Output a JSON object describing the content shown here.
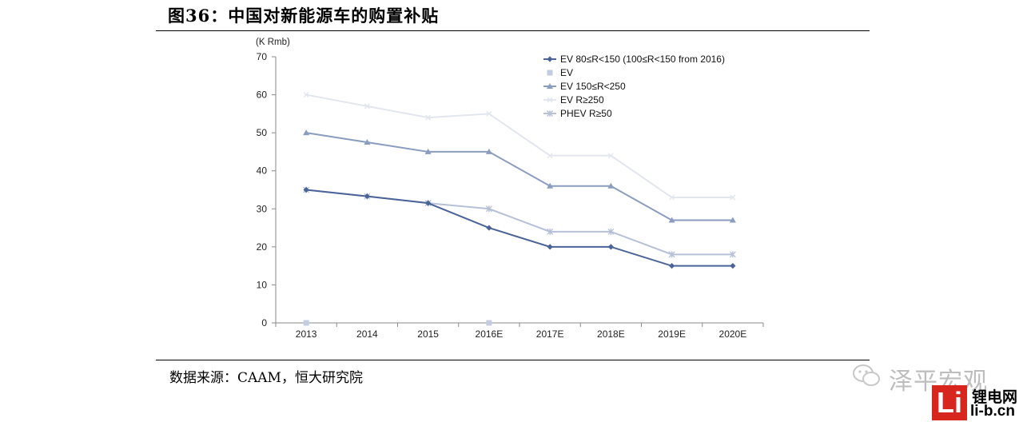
{
  "header": {
    "title": "图36：中国对新能源车的购置补贴"
  },
  "footer": {
    "source": "数据来源：CAAM，恒大研究院"
  },
  "watermark": {
    "text": "泽平宏观",
    "icon": "wechat-icon"
  },
  "logo": {
    "mark": "Li",
    "cn": "锂电网",
    "url": "li-b.cn",
    "color": "#d7261e"
  },
  "chart_data": {
    "type": "line",
    "title": "",
    "ylabel": "(K Rmb)",
    "xlabel": "",
    "categories": [
      "2013",
      "2014",
      "2015",
      "2016E",
      "2017E",
      "2018E",
      "2019E",
      "2020E"
    ],
    "ylim": [
      0,
      70
    ],
    "yticks": [
      0,
      10,
      20,
      30,
      40,
      50,
      60,
      70
    ],
    "grid": false,
    "legend_position": "top-right",
    "series": [
      {
        "name": "EV 80≤R<150 (100≤R<150 from 2016)",
        "color": "#4a6398",
        "marker": "diamond",
        "values": [
          35,
          33.3,
          31.5,
          25,
          20,
          20,
          15,
          15
        ]
      },
      {
        "name": "EV",
        "color": "#c3cde0",
        "marker": "square",
        "values": [
          0,
          null,
          null,
          0,
          null,
          null,
          null,
          null
        ]
      },
      {
        "name": "EV 150≤R<250",
        "color": "#8a9cbf",
        "marker": "triangle",
        "values": [
          50,
          47.5,
          45,
          45,
          36,
          36,
          27,
          27
        ]
      },
      {
        "name": "EV R≥250",
        "color": "#e2e6ee",
        "marker": "x",
        "values": [
          60,
          57,
          54,
          55,
          44,
          44,
          33,
          33
        ]
      },
      {
        "name": "PHEV R≥50",
        "color": "#b6c1d8",
        "marker": "star",
        "values": [
          35,
          33.3,
          31.5,
          30,
          24,
          24,
          18,
          18
        ]
      }
    ]
  }
}
